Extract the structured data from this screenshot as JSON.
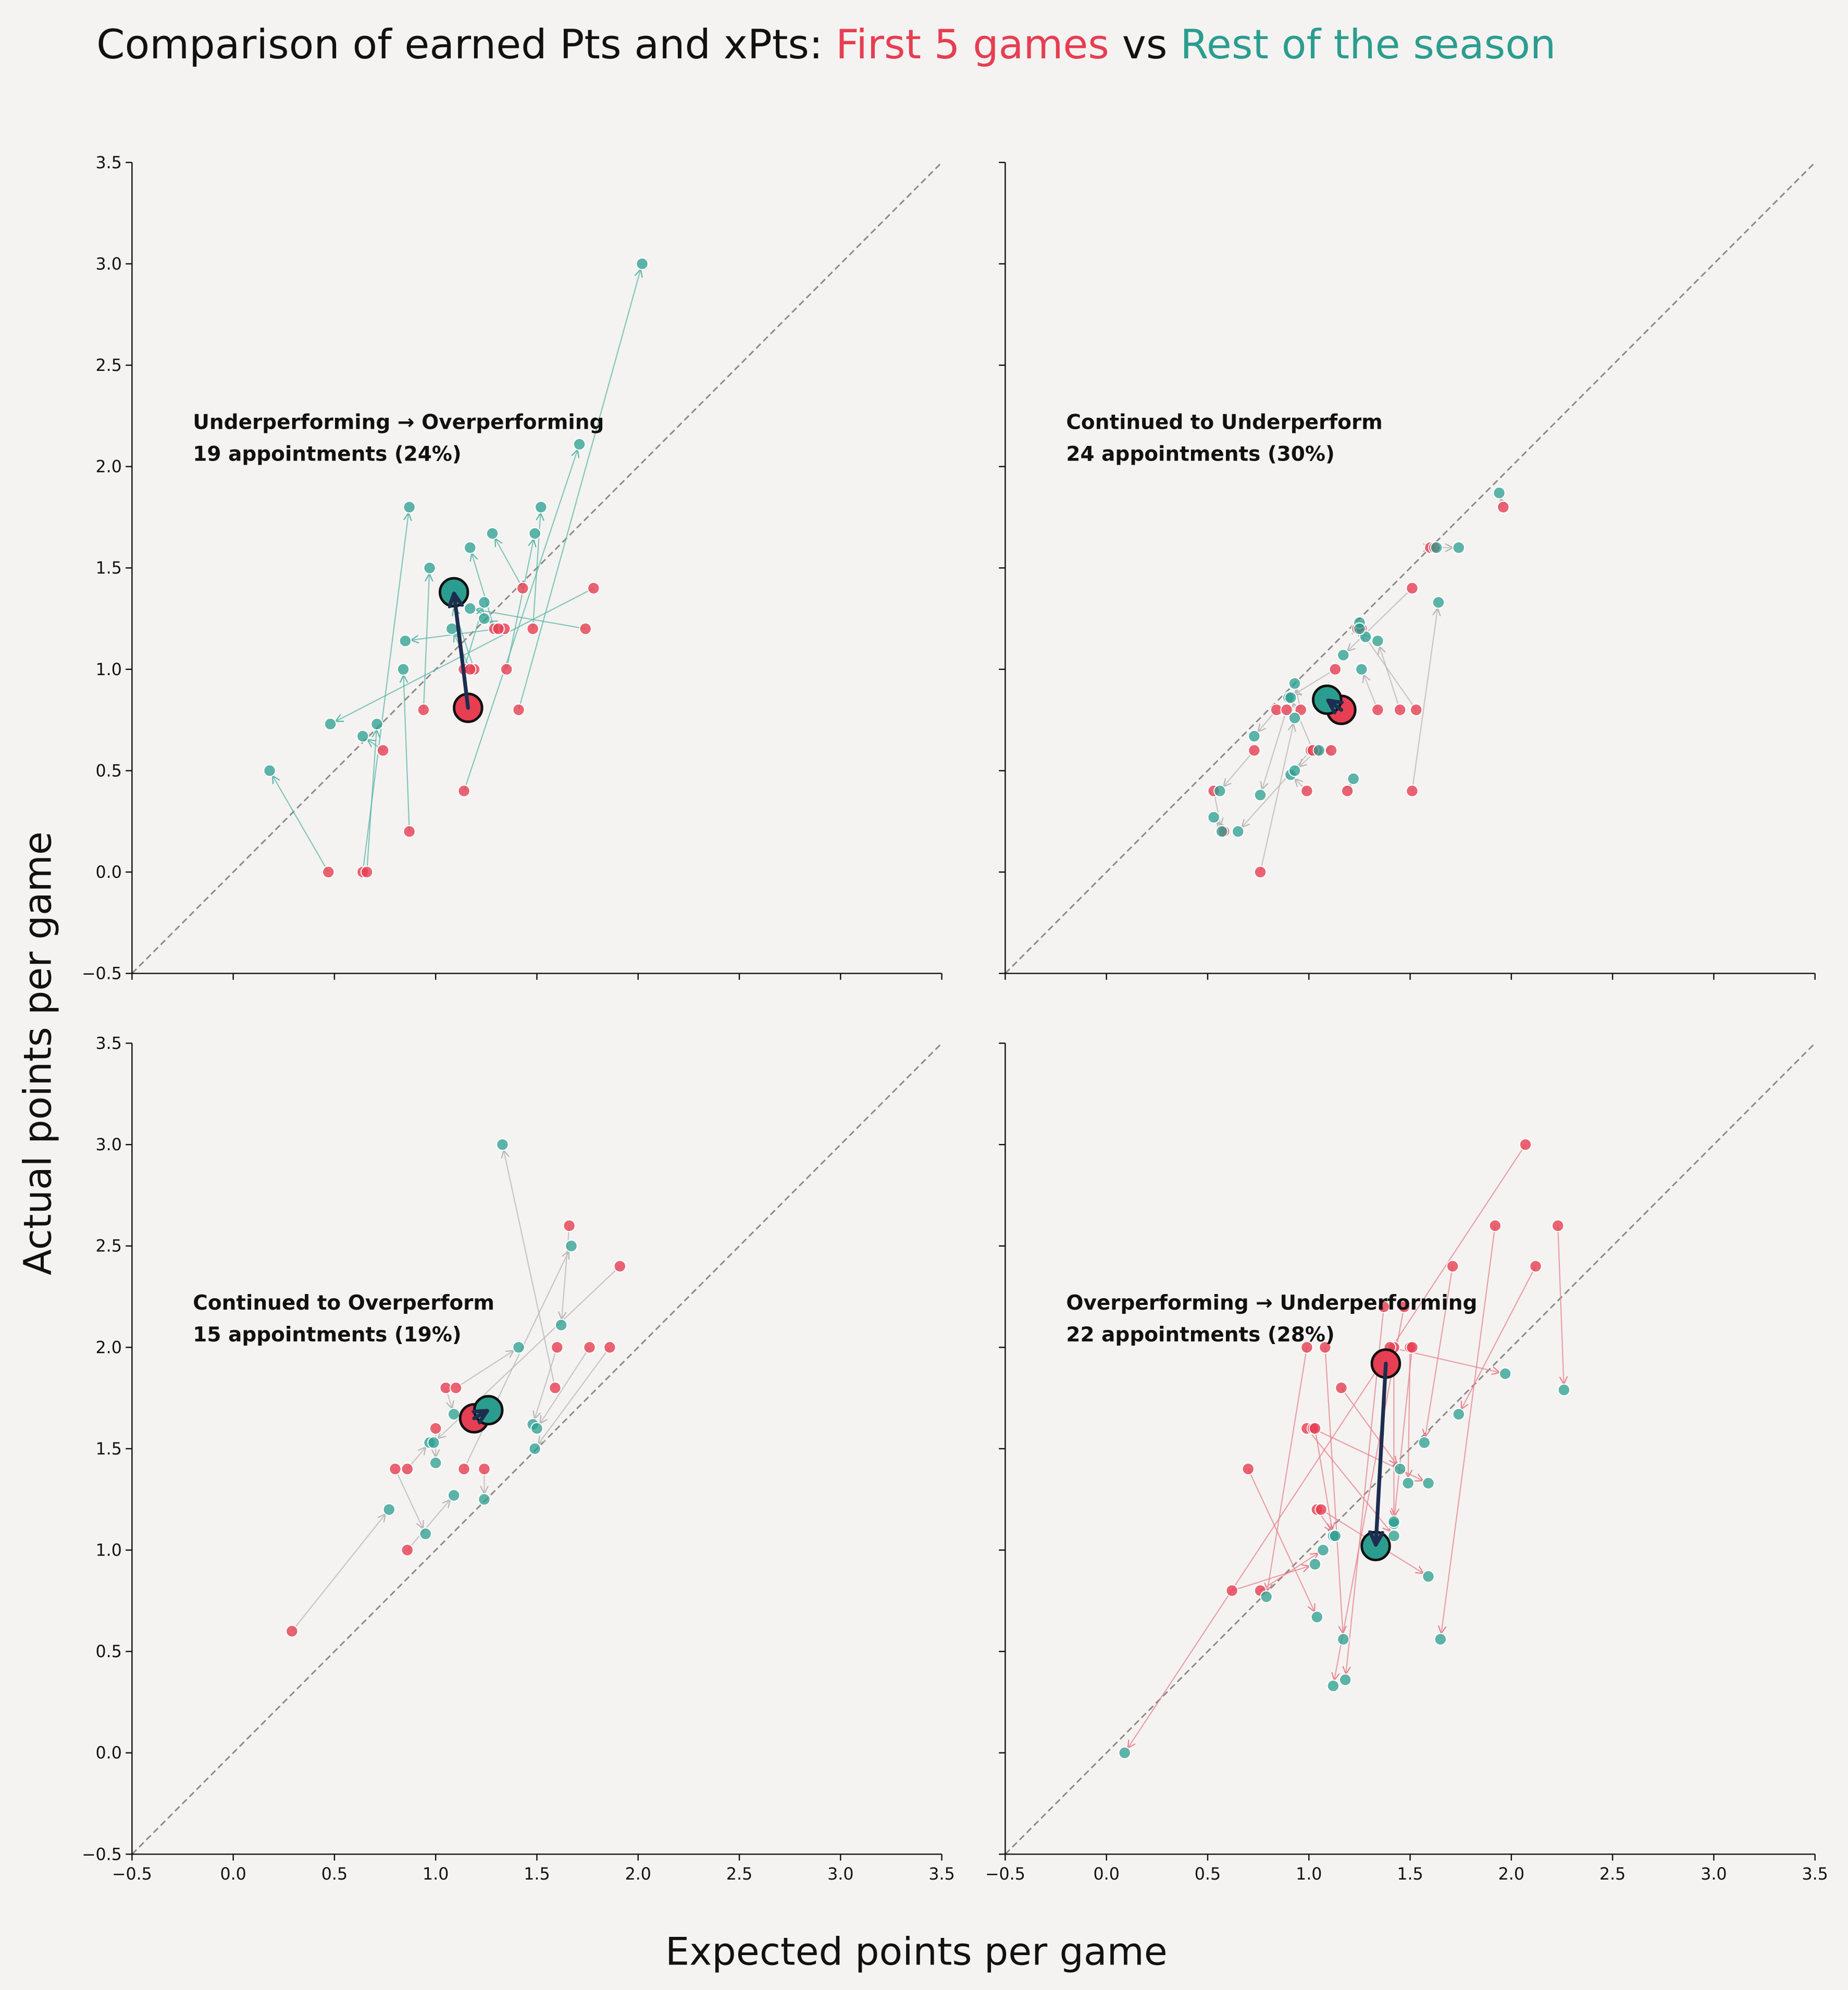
{
  "figure": {
    "title": {
      "text": "Comparison of earned Pts and xPts:",
      "first": "First 5 games",
      "joiner": "vs",
      "second": "Rest of the season"
    },
    "first_color": "#e63e52",
    "second_color": "#2a9d8f",
    "mean_arrow_color": "#1d2d50",
    "xlabel": "Expected points per game",
    "ylabel": "Actual points per game",
    "xticks": [
      {
        "value": -0.5,
        "label": "−0.5"
      },
      {
        "value": 0,
        "label": "0.0"
      },
      0.5,
      {
        "value": 1,
        "label": "1.0"
      },
      1.5,
      {
        "value": 2,
        "label": "2.0"
      },
      2.5,
      {
        "value": 3,
        "label": "3.0"
      },
      3.5
    ],
    "yticks": [
      {
        "value": -0.5,
        "label": "−0.5"
      },
      {
        "value": 0,
        "label": "0.0"
      },
      0.5,
      {
        "value": 1,
        "label": "1.0"
      },
      1.5,
      {
        "value": 2,
        "label": "2.0"
      },
      2.5,
      {
        "value": 3,
        "label": "3.0"
      },
      3.5
    ]
  },
  "chart_data": [
    {
      "type": "scatter",
      "annotation": [
        "Underperforming → Overperforming",
        "19 appointments (24%)"
      ],
      "xlim": [
        -0.5,
        3.5
      ],
      "ylim": [
        -0.5,
        3.5
      ],
      "arrow_color": "#5bb5a8",
      "first": {
        "x": [
          0.47,
          0.64,
          0.66,
          0.74,
          0.87,
          0.94,
          1.14,
          1.14,
          1.19,
          1.29,
          1.34,
          1.35,
          1.41,
          1.43,
          1.48,
          1.74,
          1.78,
          1.31,
          1.17
        ],
        "y": [
          0,
          0,
          0,
          0.6,
          0.2,
          0.8,
          0.4,
          1.0,
          1.0,
          1.2,
          1.2,
          1.0,
          0.8,
          1.4,
          1.2,
          1.2,
          1.4,
          1.2,
          1.0
        ]
      },
      "rest": {
        "x": [
          0.18,
          0.87,
          0.71,
          0.64,
          0.84,
          0.97,
          1.71,
          1.24,
          1.08,
          1.17,
          1.24,
          1.49,
          2.02,
          1.28,
          1.52,
          1.17,
          0.48,
          0.85,
          1.08
        ],
        "y": [
          0.5,
          1.8,
          0.73,
          0.67,
          1.0,
          1.5,
          2.11,
          1.33,
          1.33,
          1.6,
          1.25,
          1.67,
          3.0,
          1.67,
          1.8,
          1.3,
          0.73,
          1.14,
          1.2
        ]
      },
      "mean": {
        "x": [
          1.16,
          1.09
        ],
        "y": [
          0.81,
          1.38
        ]
      }
    },
    {
      "type": "scatter",
      "annotation": [
        "Continued to Underperform",
        "24 appointments (30%)"
      ],
      "xlim": [
        -0.5,
        3.5
      ],
      "ylim": [
        -0.5,
        3.5
      ],
      "arrow_color": "#b5b5b5",
      "first": {
        "x": [
          0.53,
          0.58,
          0.73,
          0.76,
          0.84,
          0.89,
          0.96,
          0.99,
          1.01,
          1.04,
          1.11,
          1.13,
          1.19,
          1.24,
          1.26,
          1.34,
          1.45,
          1.51,
          1.51,
          1.53,
          1.6,
          1.96,
          1.62,
          1.02
        ],
        "y": [
          0.4,
          0.2,
          0.6,
          0,
          0.8,
          0.8,
          0.8,
          0.4,
          0.6,
          0.6,
          0.6,
          1.0,
          0.4,
          1.2,
          1.2,
          0.8,
          0.8,
          1.4,
          0.4,
          0.8,
          1.6,
          1.8,
          1.6,
          0.6
        ]
      },
      "rest": {
        "x": [
          0.57,
          0.53,
          0.56,
          0.93,
          0.73,
          0.76,
          0.93,
          0.91,
          0.65,
          0.93,
          1.05,
          0.9,
          1.22,
          1.25,
          1.28,
          1.26,
          1.34,
          1.17,
          1.64,
          1.25,
          1.63,
          1.94,
          1.74,
          0.91
        ],
        "y": [
          0.2,
          0.27,
          0.4,
          0.76,
          0.67,
          0.38,
          0.93,
          0.48,
          0.2,
          0.5,
          0.6,
          0.86,
          0.46,
          1.23,
          1.16,
          1.0,
          1.14,
          1.07,
          1.33,
          1.2,
          1.6,
          1.87,
          1.6,
          0.86
        ]
      },
      "mean": {
        "x": [
          1.16,
          1.09
        ],
        "y": [
          0.8,
          0.85
        ]
      }
    },
    {
      "type": "scatter",
      "annotation": [
        "Continued to Overperform",
        "15 appointments (19%)"
      ],
      "xlim": [
        -0.5,
        3.5
      ],
      "ylim": [
        -0.5,
        3.5
      ],
      "arrow_color": "#b5b5b5",
      "first": {
        "x": [
          0.29,
          0.8,
          0.86,
          0.86,
          1.0,
          1.05,
          1.1,
          1.14,
          1.24,
          1.59,
          1.6,
          1.66,
          1.76,
          1.86,
          1.91
        ],
        "y": [
          0.6,
          1.4,
          1.4,
          1.0,
          1.6,
          1.8,
          1.8,
          1.4,
          1.4,
          1.8,
          2.0,
          2.6,
          2.0,
          2.0,
          2.4
        ]
      },
      "rest": {
        "x": [
          0.77,
          0.95,
          0.97,
          1.09,
          1.0,
          1.09,
          1.41,
          1.67,
          1.24,
          1.33,
          1.48,
          1.62,
          1.5,
          1.49,
          0.99
        ],
        "y": [
          1.2,
          1.08,
          1.53,
          1.27,
          1.43,
          1.67,
          2.0,
          2.5,
          1.25,
          3.0,
          1.62,
          2.11,
          1.6,
          1.5,
          1.53
        ]
      },
      "mean": {
        "x": [
          1.19,
          1.26
        ],
        "y": [
          1.65,
          1.69
        ]
      }
    },
    {
      "type": "scatter",
      "annotation": [
        "Overperforming → Underperforming",
        "22 appointments (28%)"
      ],
      "xlim": [
        -0.5,
        3.5
      ],
      "ylim": [
        -0.5,
        3.5
      ],
      "arrow_color": "#e8808c",
      "first": {
        "x": [
          0.62,
          0.7,
          0.76,
          0.99,
          0.99,
          1.02,
          1.03,
          1.04,
          1.06,
          1.08,
          1.16,
          1.37,
          1.42,
          1.47,
          1.5,
          1.51,
          1.71,
          1.92,
          2.07,
          2.12,
          2.23,
          1.4
        ],
        "y": [
          0.8,
          1.4,
          0.8,
          2.0,
          1.6,
          1.6,
          1.6,
          1.2,
          1.2,
          2.0,
          1.8,
          2.2,
          2.0,
          2.2,
          2.0,
          2.0,
          2.4,
          2.6,
          3.0,
          2.4,
          2.6,
          2.0
        ]
      },
      "rest": {
        "x": [
          1.03,
          1.04,
          1.07,
          0.79,
          1.42,
          1.59,
          1.12,
          1.13,
          1.59,
          1.17,
          1.45,
          1.18,
          1.42,
          1.12,
          1.49,
          1.42,
          1.57,
          1.65,
          0.09,
          1.74,
          2.26,
          1.97
        ],
        "y": [
          0.93,
          0.67,
          1.0,
          0.77,
          1.07,
          1.33,
          1.07,
          1.07,
          0.87,
          0.56,
          1.4,
          0.36,
          1.13,
          0.33,
          1.33,
          1.14,
          1.53,
          0.56,
          0,
          1.67,
          1.79,
          1.87
        ]
      },
      "mean": {
        "x": [
          1.38,
          1.33
        ],
        "y": [
          1.92,
          1.02
        ]
      }
    }
  ]
}
